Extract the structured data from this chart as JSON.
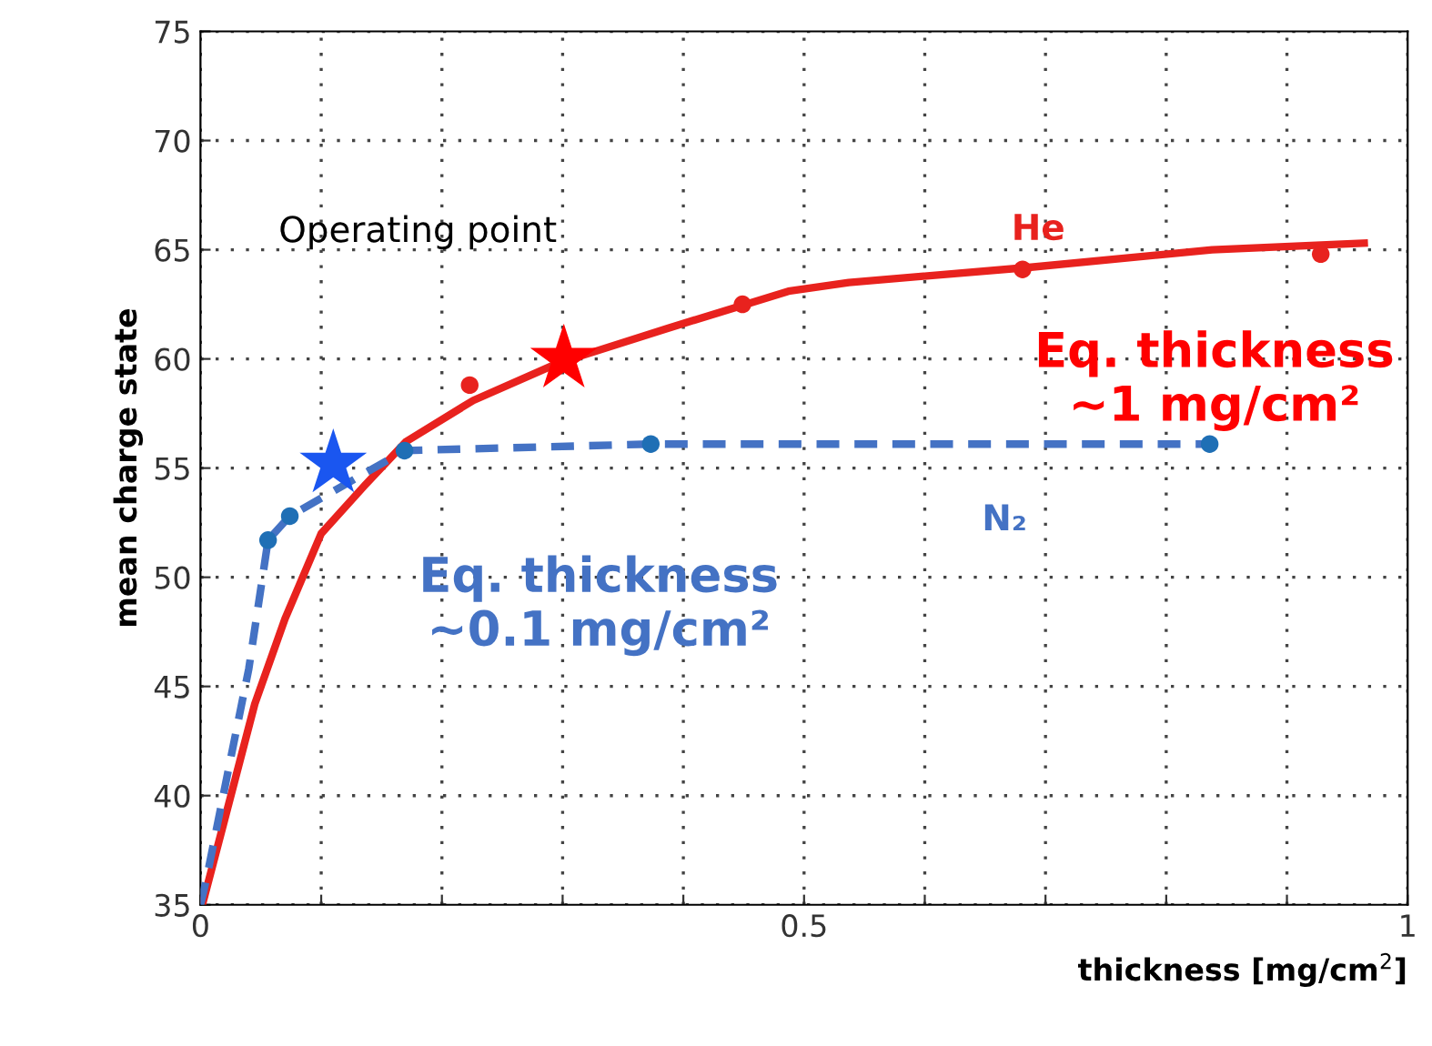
{
  "chart_data": {
    "type": "line",
    "xlabel": "thickness [mg/cm$^{2}$]",
    "ylabel": "mean charge state",
    "xlim": [
      0,
      1
    ],
    "ylim": [
      35,
      75
    ],
    "xticks": [
      0,
      {
        "value": 0.1,
        "label": null
      },
      {
        "value": 0.2,
        "label": null
      },
      {
        "value": 0.3,
        "label": null
      },
      {
        "value": 0.4,
        "label": null
      },
      0.5,
      {
        "value": 0.6,
        "label": null
      },
      {
        "value": 0.7,
        "label": null
      },
      {
        "value": 0.8,
        "label": null
      },
      {
        "value": 0.9,
        "label": null
      },
      1
    ],
    "yticks": [
      35,
      40,
      45,
      50,
      55,
      60,
      65,
      70,
      75
    ],
    "grid": true,
    "series": [
      {
        "name": "He",
        "color": "#e8221e",
        "line_style": "solid",
        "marker": "none",
        "x": [
          0.0025,
          0.02,
          0.045,
          0.07,
          0.1,
          0.136,
          0.17,
          0.226,
          0.296,
          0.387,
          0.487,
          0.537,
          0.688,
          0.838,
          0.964
        ],
        "values": [
          35.2,
          38.9,
          44.2,
          48.1,
          52,
          54.2,
          56.2,
          58.1,
          59.8,
          61.4,
          63.1,
          63.5,
          64.2,
          65.0,
          65.3
        ]
      },
      {
        "type": "scatter",
        "color": "#e8221e",
        "marker": "circle",
        "x": [
          0.223,
          0.449,
          0.681,
          0.928
        ],
        "values": [
          58.8,
          62.5,
          64.1,
          64.8
        ]
      },
      {
        "name": "N₂",
        "color": "#4472c4",
        "line_style": "dashed",
        "marker": "none",
        "x": [
          0,
          0.005,
          0.025,
          0.04,
          0.056,
          0.074,
          0.169,
          0.373,
          0.836
        ],
        "values": [
          35,
          36.2,
          41.7,
          45.8,
          51.7,
          52.8,
          55.8,
          56.1,
          56.1
        ]
      },
      {
        "type": "scatter",
        "color": "#1f6fb5",
        "marker": "circle",
        "x": [
          0.056,
          0.074,
          0.169,
          0.373,
          0.836
        ],
        "values": [
          51.7,
          52.8,
          55.8,
          56.1,
          56.1
        ]
      },
      {
        "type": "scatter",
        "color": "#1a56f0",
        "marker": "star",
        "x": [
          0.11
        ],
        "values": [
          55.2
        ]
      },
      {
        "type": "scatter",
        "color": "#ff0000",
        "marker": "star",
        "x": [
          0.301
        ],
        "values": [
          60.0
        ]
      }
    ],
    "annotations": [
      "Operating point",
      "Eq. thickness\n~1 mg/cm²",
      "Eq. thickness\n~0.1 mg/cm²"
    ]
  }
}
